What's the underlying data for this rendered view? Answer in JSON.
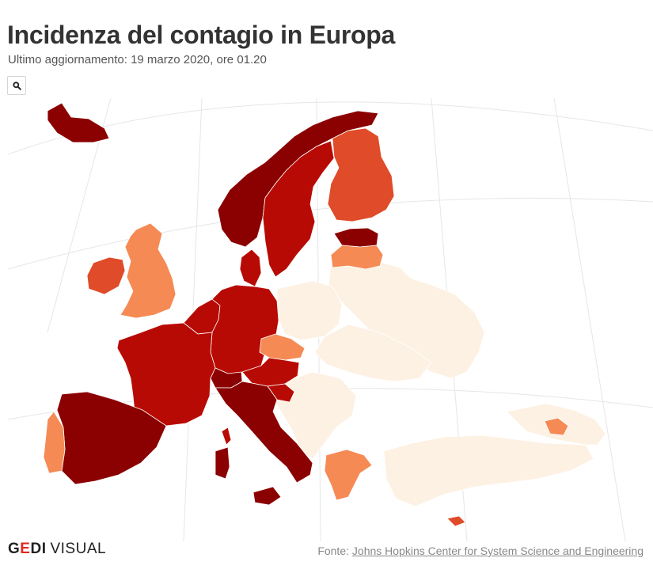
{
  "header": {
    "title": "Incidenza del contagio in Europa",
    "subtitle": "Ultimo aggiornamento: 19 marzo 2020, ore 01.20"
  },
  "toolbar": {
    "zoom_icon": "search-icon"
  },
  "map": {
    "colors": {
      "very_high": "#8b0000",
      "high": "#b80a04",
      "medium": "#e04b29",
      "low": "#f58a55",
      "very_low": "#fdf1e3",
      "graticule": "#e6e6e6",
      "border": "#ffffff"
    },
    "countries": [
      {
        "name": "Iceland",
        "level": "very_high"
      },
      {
        "name": "Norway",
        "level": "very_high"
      },
      {
        "name": "Sweden",
        "level": "high"
      },
      {
        "name": "Finland",
        "level": "medium"
      },
      {
        "name": "Estonia",
        "level": "very_high"
      },
      {
        "name": "Latvia",
        "level": "low"
      },
      {
        "name": "Lithuania",
        "level": "very_low"
      },
      {
        "name": "Denmark",
        "level": "high"
      },
      {
        "name": "United Kingdom",
        "level": "low"
      },
      {
        "name": "Ireland",
        "level": "medium"
      },
      {
        "name": "Netherlands",
        "level": "high"
      },
      {
        "name": "Belgium",
        "level": "high"
      },
      {
        "name": "Luxembourg",
        "level": "very_high"
      },
      {
        "name": "Germany",
        "level": "high"
      },
      {
        "name": "France",
        "level": "high"
      },
      {
        "name": "Switzerland",
        "level": "very_high"
      },
      {
        "name": "Austria",
        "level": "high"
      },
      {
        "name": "Czechia",
        "level": "low"
      },
      {
        "name": "Slovenia",
        "level": "high"
      },
      {
        "name": "Italy",
        "level": "very_high"
      },
      {
        "name": "Spain",
        "level": "very_high"
      },
      {
        "name": "Portugal",
        "level": "low"
      },
      {
        "name": "Greece",
        "level": "low"
      },
      {
        "name": "Cyprus",
        "level": "medium"
      },
      {
        "name": "Armenia",
        "level": "low"
      },
      {
        "name": "Poland",
        "level": "very_low"
      },
      {
        "name": "Belarus",
        "level": "very_low"
      },
      {
        "name": "Ukraine",
        "level": "very_low"
      },
      {
        "name": "Russia",
        "level": "very_low"
      },
      {
        "name": "Slovakia",
        "level": "very_low"
      },
      {
        "name": "Hungary",
        "level": "very_low"
      },
      {
        "name": "Romania",
        "level": "very_low"
      },
      {
        "name": "Moldova",
        "level": "very_low"
      },
      {
        "name": "Bulgaria",
        "level": "very_low"
      },
      {
        "name": "Serbia",
        "level": "very_low"
      },
      {
        "name": "Croatia",
        "level": "very_low"
      },
      {
        "name": "Bosnia and Herzegovina",
        "level": "very_low"
      },
      {
        "name": "Albania",
        "level": "very_low"
      },
      {
        "name": "North Macedonia",
        "level": "very_low"
      },
      {
        "name": "Turkey",
        "level": "very_low"
      },
      {
        "name": "Georgia",
        "level": "very_low"
      },
      {
        "name": "Azerbaijan",
        "level": "very_low"
      }
    ]
  },
  "footer": {
    "logo_brand_first": "G",
    "logo_brand_accent": "E",
    "logo_brand_rest": "DI",
    "logo_sub": "VISUAL",
    "source_label": "Fonte:",
    "source_link": "Johns Hopkins Center for System Science and Engineering"
  }
}
